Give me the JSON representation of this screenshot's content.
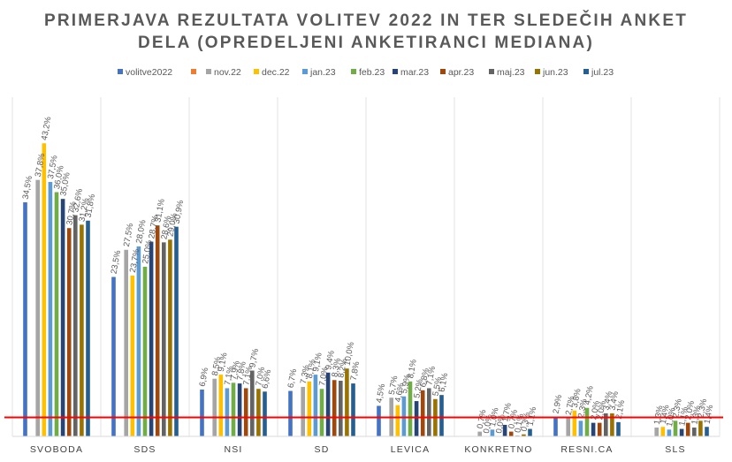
{
  "chart_data": {
    "type": "bar",
    "title_lines": [
      "PRIMERJAVA REZULTATA VOLITEV 2022 IN TER SLEDEČIH ANKET",
      "DELA (OPREDELJENI ANKETIRANCI MEDIANA)"
    ],
    "categories": [
      "SVOBODA",
      "SDS",
      "NSI",
      "SD",
      "LEVICA",
      "KONKRETNO",
      "RESNI.CA",
      "SLS"
    ],
    "ylim": [
      0,
      50
    ],
    "grid": false,
    "legend_position": "top",
    "reference_line": {
      "value": 2.8,
      "color": "#FF0000"
    },
    "series": [
      {
        "name": "volitve2022",
        "color": "#4472C4",
        "values": [
          34.5,
          23.5,
          6.9,
          6.7,
          4.5,
          null,
          2.9,
          null
        ],
        "labels": [
          "34,5%",
          "23,5%",
          "6,9%",
          "6,7%",
          "4,5%",
          "",
          "2,9%",
          ""
        ]
      },
      {
        "name": "nov.22",
        "color": "#ED7D31",
        "values": [
          null,
          null,
          null,
          null,
          null,
          null,
          null,
          null
        ],
        "labels": [
          "",
          "",
          "",
          "",
          "",
          "",
          "",
          ""
        ]
      },
      {
        "name": "nov.22",
        "color": "#A5A5A5",
        "values": [
          37.8,
          27.5,
          8.5,
          7.3,
          5.7,
          0.7,
          2.7,
          1.3
        ],
        "labels": [
          "37,8%",
          "27,5%",
          "8,5%",
          "7,3%",
          "5,7%",
          "0,7%",
          "2,7%",
          "1,3%"
        ]
      },
      {
        "name": "dec.22",
        "color": "#FFC000",
        "values": [
          43.2,
          23.7,
          9.1,
          8.1,
          4.6,
          0.0,
          3.8,
          1.4
        ],
        "labels": [
          "43,2%",
          "23,7%",
          "9,1%",
          "8,1%",
          "4,6%",
          "0,0%",
          "3,8%",
          "1,4%"
        ]
      },
      {
        "name": "jan.23",
        "color": "#5B9BD5",
        "values": [
          37.5,
          28.0,
          7.1,
          9.1,
          5.9,
          1.0,
          2.3,
          1.0
        ],
        "labels": [
          "37,5%",
          "28,0%",
          "7,1%",
          "9,1%",
          "5,9%",
          "1,0%",
          "2,3%",
          "1,0%"
        ]
      },
      {
        "name": "feb.23",
        "color": "#70AD47",
        "values": [
          36.0,
          25.0,
          7.9,
          7.0,
          8.1,
          0.0,
          4.2,
          2.3
        ],
        "labels": [
          "36,0%",
          "25,0%",
          "7,9%",
          "7,0%",
          "8,1%",
          "0,0%",
          "4,2%",
          "2,3%"
        ]
      },
      {
        "name": "mar.23",
        "color": "#264478",
        "values": [
          35.0,
          28.7,
          7.8,
          9.4,
          5.2,
          1.7,
          2.0,
          1.1
        ],
        "labels": [
          "35,0%",
          "28,7%",
          "7,8%",
          "9,4%",
          "5,2%",
          "1,7%",
          "2,0%",
          "1,1%"
        ]
      },
      {
        "name": "apr.23",
        "color": "#9E480E",
        "values": [
          30.7,
          31.1,
          7.1,
          8.3,
          6.8,
          0.7,
          2.0,
          2.0
        ],
        "labels": [
          "30,7%",
          "31,1%",
          "7,1%",
          "8,3%",
          "6,8%",
          "0,7%",
          "2,0%",
          "2,0%"
        ]
      },
      {
        "name": "maj.23",
        "color": "#636363",
        "values": [
          32.6,
          28.6,
          9.7,
          8.2,
          7.1,
          0.1,
          3.4,
          1.3
        ],
        "labels": [
          "32,6%",
          "28,6%",
          "9,7%",
          "8,2%",
          "7,1%",
          "0,1%",
          "3,4%",
          "1,3%"
        ]
      },
      {
        "name": "jun.23",
        "color": "#997300",
        "values": [
          31.2,
          29.0,
          7.0,
          10.0,
          5.5,
          0.3,
          3.4,
          2.3
        ],
        "labels": [
          "31,2%",
          "29,0%",
          "7,0%",
          "10,0%",
          "5,5%",
          "0,3%",
          "3,4%",
          "2,3%"
        ]
      },
      {
        "name": "jul.23",
        "color": "#255E91",
        "values": [
          31.8,
          30.9,
          6.6,
          7.8,
          6.1,
          1.1,
          2.1,
          1.4
        ],
        "labels": [
          "31,8%",
          "30,9%",
          "6,6%",
          "7,8%",
          "6,1%",
          "1,1%",
          "2,1%",
          "1,4%"
        ]
      }
    ]
  }
}
